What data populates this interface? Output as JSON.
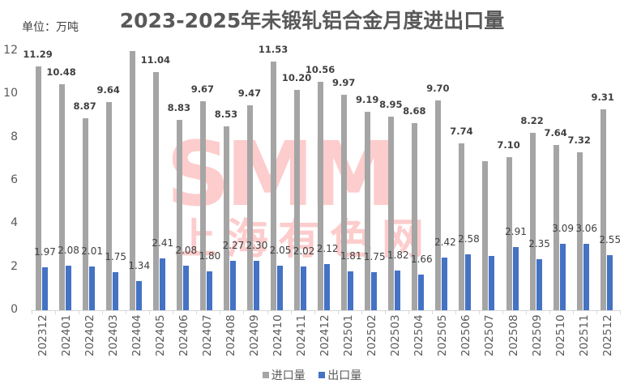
{
  "chart_data": {
    "type": "bar",
    "title": "2023-2025年未锻轧铝合金月度进出口量",
    "unit_label": "单位：万吨",
    "xlabel": "",
    "ylabel": "万吨",
    "ylim": [
      0,
      12
    ],
    "yticks": [
      0,
      2,
      4,
      6,
      8,
      10,
      12
    ],
    "grid": false,
    "legend_position": "bottom",
    "categories": [
      "202312",
      "202401",
      "202402",
      "202403",
      "202404",
      "202405",
      "202406",
      "202407",
      "202408",
      "202409",
      "202410",
      "202411",
      "202412",
      "202501",
      "202502",
      "202503",
      "202504",
      "202505",
      "202506",
      "202507",
      "202508",
      "202509",
      "202510",
      "202511",
      "202512"
    ],
    "series": [
      {
        "name": "进口量",
        "color": "#a5a5a5",
        "values": [
          11.29,
          10.48,
          8.87,
          9.64,
          12.0,
          11.04,
          8.83,
          9.67,
          8.53,
          9.47,
          11.53,
          10.2,
          10.56,
          9.97,
          9.19,
          8.95,
          8.68,
          9.7,
          7.74,
          6.9,
          7.1,
          8.22,
          7.64,
          7.32,
          9.31
        ],
        "labels": [
          "11.29",
          "10.48",
          "8.87",
          "9.64",
          "",
          "11.04",
          "8.83",
          "9.67",
          "8.53",
          "9.47",
          "11.53",
          "10.20",
          "10.56",
          "9.97",
          "9.19",
          "8.95",
          "8.68",
          "9.70",
          "7.74",
          "",
          "7.10",
          "8.22",
          "7.64",
          "7.32",
          "9.31"
        ]
      },
      {
        "name": "出口量",
        "color": "#4472c4",
        "values": [
          1.97,
          2.08,
          2.01,
          1.75,
          1.34,
          2.41,
          2.08,
          1.8,
          2.27,
          2.3,
          2.05,
          2.02,
          2.12,
          1.81,
          1.75,
          1.82,
          1.66,
          2.42,
          2.58,
          2.5,
          2.91,
          2.35,
          3.09,
          3.06,
          2.55
        ],
        "labels": [
          "1.97",
          "2.08",
          "2.01",
          "1.75",
          "1.34",
          "2.41",
          "2.08",
          "1.80",
          "2.27",
          "2.30",
          "2.05",
          "2.02",
          "2.12",
          "1.81",
          "1.75",
          "1.82",
          "1.66",
          "2.42",
          "2.58",
          "",
          "2.91",
          "2.35",
          "3.09",
          "3.06",
          "2.55"
        ]
      }
    ]
  },
  "legend": {
    "import": "进口量",
    "export": "出口量"
  },
  "watermark": {
    "line1": "SMM",
    "line2": "上海有色网"
  }
}
